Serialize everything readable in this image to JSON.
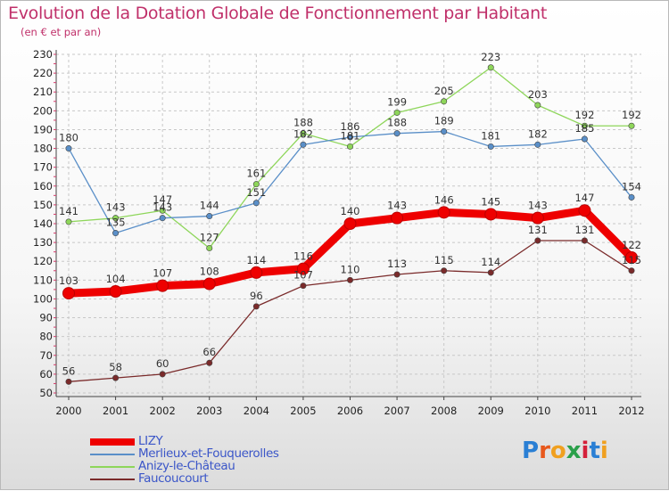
{
  "title": "Evolution de la Dotation Globale de Fonctionnement par Habitant",
  "subtitle": "(en € et par an)",
  "logo_text": "Proxiti",
  "chart_data": {
    "type": "line",
    "title": "Evolution de la Dotation Globale de Fonctionnement par Habitant",
    "ylabel": "(en € et par an)",
    "xlabel": "",
    "ylim": [
      50,
      230
    ],
    "yticks": [
      50,
      60,
      70,
      80,
      90,
      100,
      110,
      120,
      130,
      140,
      150,
      160,
      170,
      180,
      190,
      200,
      210,
      220,
      230
    ],
    "grid": true,
    "legend_position": "bottom-left",
    "categories": [
      "2000",
      "2001",
      "2002",
      "2003",
      "2004",
      "2005",
      "2006",
      "2007",
      "2008",
      "2009",
      "2010",
      "2011",
      "2012"
    ],
    "series": [
      {
        "name": "LIZY",
        "color": "#ee0000",
        "values": [
          103,
          104,
          107,
          108,
          114,
          116,
          140,
          143,
          146,
          145,
          143,
          147,
          122
        ]
      },
      {
        "name": "Merlieux-et-Fouquerolles",
        "color": "#5a8fc8",
        "values": [
          180,
          135,
          143,
          144,
          151,
          182,
          186,
          188,
          189,
          181,
          182,
          185,
          154
        ]
      },
      {
        "name": "Anizy-le-Château",
        "color": "#8ed65a",
        "values": [
          141,
          143,
          147,
          127,
          161,
          188,
          181,
          199,
          205,
          223,
          203,
          192,
          192
        ]
      },
      {
        "name": "Faucoucourt",
        "color": "#7a2a2a",
        "values": [
          56,
          58,
          60,
          66,
          96,
          107,
          110,
          113,
          115,
          114,
          131,
          131,
          115
        ]
      }
    ]
  }
}
